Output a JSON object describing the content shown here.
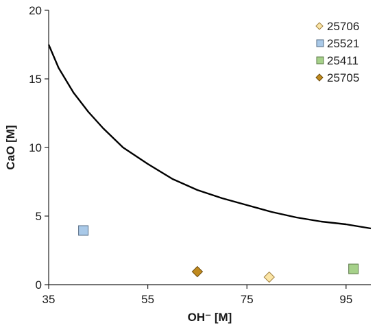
{
  "chart_data": {
    "type": "scatter",
    "xlabel": "OH⁻ [M]",
    "ylabel": "CaO [M]",
    "xlim": [
      35,
      100
    ],
    "ylim": [
      0,
      20
    ],
    "xticks": [
      35,
      55,
      75,
      95
    ],
    "yticks": [
      0,
      5,
      10,
      15,
      20
    ],
    "grid": false,
    "legend_position": "top-right",
    "curve": {
      "x": [
        35,
        37,
        40,
        43,
        46,
        50,
        55,
        60,
        65,
        70,
        75,
        80,
        85,
        90,
        95,
        100
      ],
      "y": [
        17.5,
        15.8,
        14.0,
        12.6,
        11.4,
        10.0,
        8.8,
        7.7,
        6.9,
        6.3,
        5.8,
        5.3,
        4.9,
        4.6,
        4.4,
        4.1
      ]
    },
    "series": [
      {
        "name": "25706",
        "marker": "diamond",
        "color": "#fbe5a6",
        "stroke": "#a08040",
        "points": [
          {
            "x": 79.5,
            "y": 0.55
          }
        ]
      },
      {
        "name": "25521",
        "marker": "square",
        "color": "#a9c9e8",
        "stroke": "#556c85",
        "points": [
          {
            "x": 42,
            "y": 3.95
          }
        ]
      },
      {
        "name": "25411",
        "marker": "square",
        "color": "#a6d18a",
        "stroke": "#5d7a4a",
        "points": [
          {
            "x": 96.5,
            "y": 1.15
          }
        ]
      },
      {
        "name": "25705",
        "marker": "diamond",
        "color": "#c08a1e",
        "stroke": "#6e4d0e",
        "points": [
          {
            "x": 65,
            "y": 0.95
          }
        ]
      }
    ]
  }
}
